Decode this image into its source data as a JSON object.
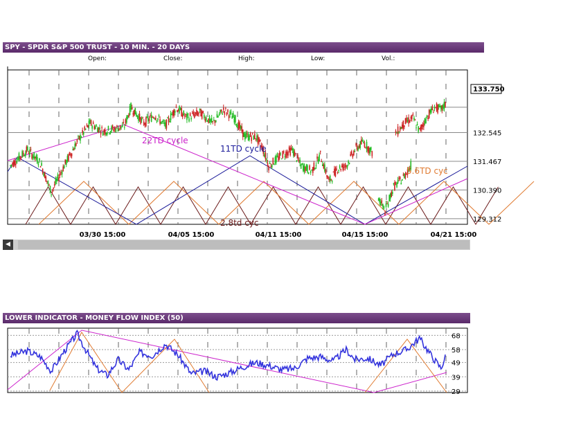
{
  "header": {
    "title": "SPY - SPDR S&P 500 TRUST - 10 MIN. - 20 DAYS"
  },
  "stats": {
    "open": "Open:",
    "close": "Close:",
    "high": "High:",
    "low": "Low:",
    "vol": "Vol.:"
  },
  "lower_header": {
    "title": "LOWER INDICATOR - MONEY FLOW INDEX (50)"
  },
  "colors": {
    "up": "#22bb22",
    "down": "#cc2222",
    "mfi": "#3333dd",
    "cycle22": "#cc22cc",
    "cycle11": "#1a1a99",
    "cycle56": "#e07a30",
    "cycle28": "#6b1a1a"
  },
  "chart_data": [
    {
      "type": "candlestick",
      "title": "SPY - SPDR S&P 500 TRUST - 10 MIN. - 20 DAYS",
      "y_ticks": [
        129.312,
        130.39,
        131.467,
        132.545
      ],
      "ylim": [
        129.1,
        134.9
      ],
      "last_price": "133.750",
      "x_ticks": [
        "03/30 15:00",
        "04/05 15:00",
        "04/11 15:00",
        "04/15 15:00",
        "04/21 15:00"
      ],
      "grid": true,
      "series": [
        {
          "name": "SPY",
          "segments": [
            [
              [
                0,
                131.3
              ],
              [
                8,
                131.9
              ],
              [
                14,
                131.4
              ],
              [
                19,
                130.3
              ],
              [
                25,
                131.3
              ],
              [
                31,
                132.2
              ],
              [
                37,
                132.9
              ],
              [
                43,
                132.6
              ],
              [
                49,
                132.7
              ],
              [
                53,
                132.8
              ],
              [
                56,
                133.5
              ],
              [
                62,
                132.9
              ],
              [
                67,
                133.2
              ],
              [
                72,
                132.8
              ],
              [
                77,
                133.5
              ],
              [
                82,
                133.1
              ],
              [
                88,
                133.3
              ],
              [
                94,
                132.9
              ],
              [
                99,
                133.4
              ],
              [
                104,
                133.1
              ],
              [
                109,
                132.4
              ],
              [
                114,
                132.4
              ],
              [
                117,
                132.0
              ],
              [
                120,
                131.3
              ],
              [
                126,
                131.7
              ],
              [
                131,
                131.9
              ],
              [
                135,
                131.3
              ],
              [
                140,
                131.1
              ],
              [
                144,
                131.7
              ],
              [
                148,
                130.7
              ],
              [
                152,
                131.2
              ],
              [
                156,
                131.3
              ],
              [
                160,
                131.9
              ],
              [
                164,
                132.2
              ],
              [
                168,
                131.8
              ]
            ],
            [
              [
                179,
                132.5
              ],
              [
                183,
                132.9
              ],
              [
                187,
                133.1
              ],
              [
                190,
                132.6
              ],
              [
                194,
                133.2
              ],
              [
                197,
                133.5
              ],
              [
                200,
                133.4
              ],
              [
                202,
                133.6
              ]
            ]
          ],
          "segments_2": [
            [
              [
                171,
                130.1
              ],
              [
                174,
                129.6
              ],
              [
                178,
                130.5
              ],
              [
                182,
                130.8
              ],
              [
                186,
                131.3
              ]
            ]
          ]
        }
      ],
      "annotations": [
        "22TD cycle",
        "11TD cycle",
        "5.6TD cyc",
        "2.8td cyc"
      ]
    },
    {
      "type": "line",
      "title": "LOWER INDICATOR - MONEY FLOW INDEX (50)",
      "y_ticks": [
        29,
        39,
        49,
        58,
        68
      ],
      "ylim": [
        28,
        73
      ],
      "grid": true,
      "series": [
        {
          "name": "MONEY FLOW INDEX (50)",
          "x": [
            0,
            8,
            14,
            19,
            25,
            31,
            35,
            40,
            45,
            50,
            55,
            60,
            66,
            72,
            78,
            84,
            90,
            96,
            102,
            108,
            114,
            120,
            126,
            132,
            138,
            144,
            150,
            156,
            160,
            166,
            172,
            178,
            184,
            190,
            195,
            200,
            202
          ],
          "y": [
            54,
            57,
            53,
            43,
            57,
            69,
            58,
            45,
            40,
            51,
            44,
            56,
            54,
            62,
            54,
            41,
            43,
            39,
            42,
            46,
            49,
            47,
            44,
            45,
            52,
            53,
            50,
            58,
            51,
            52,
            47,
            55,
            58,
            66,
            55,
            45,
            53
          ]
        }
      ]
    }
  ]
}
